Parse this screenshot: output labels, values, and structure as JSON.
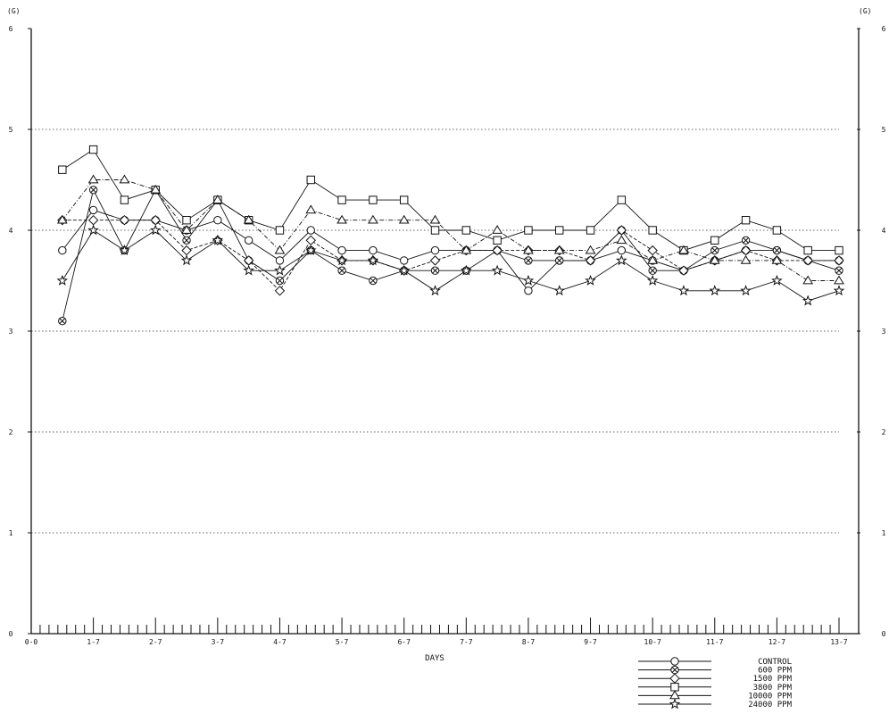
{
  "chart_data": {
    "type": "line",
    "title": "",
    "unit_left": "(G)",
    "unit_right": "(G)",
    "xlabel": "DAYS",
    "ylabel": "",
    "ylim": [
      0,
      6
    ],
    "yticks": [
      "0",
      "1",
      "2",
      "3",
      "4",
      "5",
      "6"
    ],
    "xlim": [
      0,
      13
    ],
    "xtick_labels": [
      "0-0",
      "1-7",
      "2-7",
      "3-7",
      "4-7",
      "5-7",
      "6-7",
      "7-7",
      "8-7",
      "9-7",
      "10-7",
      "11-7",
      "12-7",
      "13-7"
    ],
    "grid": true,
    "legend_position": "bottom-right",
    "x": [
      0.5,
      1,
      1.5,
      2,
      2.5,
      3,
      3.5,
      4,
      4.5,
      5,
      5.5,
      6,
      6.5,
      7,
      7.5,
      8,
      8.5,
      9,
      9.5,
      10,
      10.5,
      11,
      11.5,
      12,
      12.5,
      13
    ],
    "series": [
      {
        "name": "CONTROL",
        "marker": "circle",
        "values": [
          3.8,
          4.2,
          4.1,
          4.1,
          4.0,
          4.1,
          3.9,
          3.7,
          4.0,
          3.8,
          3.8,
          3.7,
          3.8,
          3.8,
          3.8,
          3.4,
          3.7,
          3.7,
          3.8,
          3.7,
          3.6,
          3.7,
          3.8,
          3.8,
          3.7,
          3.7
        ]
      },
      {
        "name": "600 PPM",
        "marker": "circle-cross",
        "values": [
          3.1,
          4.4,
          3.8,
          4.4,
          3.9,
          4.3,
          3.7,
          3.5,
          3.8,
          3.6,
          3.5,
          3.6,
          3.6,
          3.6,
          3.8,
          3.7,
          3.7,
          3.7,
          4.0,
          3.6,
          3.6,
          3.8,
          3.9,
          3.8,
          3.7,
          3.6
        ]
      },
      {
        "name": "1500 PPM",
        "marker": "diamond",
        "values": [
          4.1,
          4.1,
          4.1,
          4.1,
          3.8,
          3.9,
          3.7,
          3.4,
          3.9,
          3.7,
          3.7,
          3.6,
          3.7,
          3.8,
          3.8,
          3.8,
          3.8,
          3.7,
          4.0,
          3.8,
          3.6,
          3.7,
          3.8,
          3.7,
          3.7,
          3.7
        ]
      },
      {
        "name": "3800 PPM",
        "marker": "square",
        "values": [
          4.6,
          4.8,
          4.3,
          4.4,
          4.1,
          4.3,
          4.1,
          4.0,
          4.5,
          4.3,
          4.3,
          4.3,
          4.0,
          4.0,
          3.9,
          4.0,
          4.0,
          4.0,
          4.3,
          4.0,
          3.8,
          3.9,
          4.1,
          4.0,
          3.8,
          3.8
        ]
      },
      {
        "name": "10000 PPM",
        "marker": "triangle",
        "values": [
          4.1,
          4.5,
          4.5,
          4.4,
          4.0,
          4.3,
          4.1,
          3.8,
          4.2,
          4.1,
          4.1,
          4.1,
          4.1,
          3.8,
          4.0,
          3.8,
          3.8,
          3.8,
          3.9,
          3.7,
          3.8,
          3.7,
          3.7,
          3.7,
          3.5,
          3.5
        ]
      },
      {
        "name": "24000 PPM",
        "marker": "star",
        "values": [
          3.5,
          4.0,
          3.8,
          4.0,
          3.7,
          3.9,
          3.6,
          3.6,
          3.8,
          3.7,
          3.7,
          3.6,
          3.4,
          3.6,
          3.6,
          3.5,
          3.4,
          3.5,
          3.7,
          3.5,
          3.4,
          3.4,
          3.4,
          3.5,
          3.3,
          3.4
        ]
      }
    ]
  }
}
